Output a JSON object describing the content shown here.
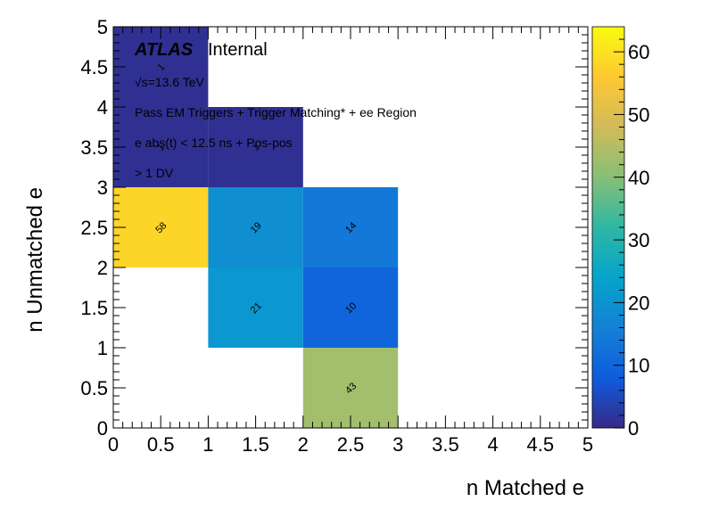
{
  "chart_data": {
    "type": "heatmap",
    "xlabel": "n Matched e",
    "ylabel": "n Unmatched e",
    "xlim": [
      0,
      5
    ],
    "ylim": [
      0,
      5
    ],
    "x_ticks": [
      "0",
      "0.5",
      "1",
      "1.5",
      "2",
      "2.5",
      "3",
      "3.5",
      "4",
      "4.5",
      "5"
    ],
    "y_ticks": [
      "0",
      "0.5",
      "1",
      "1.5",
      "2",
      "2.5",
      "3",
      "3.5",
      "4",
      "4.5",
      "5"
    ],
    "z_range": [
      0,
      64
    ],
    "colorbar_ticks": [
      "0",
      "10",
      "20",
      "30",
      "40",
      "50",
      "60"
    ],
    "cells": [
      {
        "x": 0,
        "y": 4,
        "value": 1,
        "label": "1"
      },
      {
        "x": 0,
        "y": 3,
        "value": 1,
        "label": "1"
      },
      {
        "x": 1,
        "y": 3,
        "value": 1,
        "label": "1"
      },
      {
        "x": 0,
        "y": 2,
        "value": 58,
        "label": "58"
      },
      {
        "x": 1,
        "y": 2,
        "value": 19,
        "label": "19"
      },
      {
        "x": 2,
        "y": 2,
        "value": 14,
        "label": "14"
      },
      {
        "x": 1,
        "y": 1,
        "value": 21,
        "label": "21"
      },
      {
        "x": 2,
        "y": 1,
        "value": 10,
        "label": "10"
      },
      {
        "x": 2,
        "y": 0,
        "value": 43,
        "label": "43"
      }
    ],
    "annotations": {
      "atlas": "ATLAS",
      "internal": "Internal",
      "energy": "√s=13.6 TeV",
      "selection": "Pass EM Triggers + Trigger Matching* + ee Region",
      "timing": "e abs(t) < 12.5 ns + Pos-pos",
      "dv": "> 1 DV"
    }
  }
}
